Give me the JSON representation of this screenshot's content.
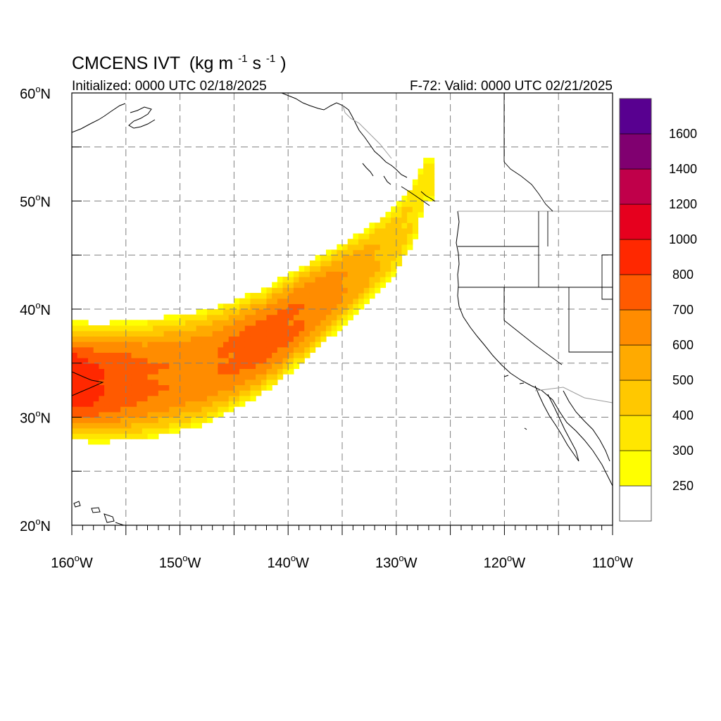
{
  "title": {
    "product": "CMCENS IVT",
    "units_prefix": "(kg m",
    "units_exp1": "-1",
    "units_mid": "s",
    "units_exp2": "-1",
    "units_suffix": ")",
    "initialized": "Initialized: 0000 UTC 02/18/2025",
    "valid": "F-72: Valid: 0000 UTC 02/21/2025"
  },
  "map": {
    "lon_range": [
      -160,
      -110
    ],
    "lat_range": [
      20,
      60
    ],
    "lon_ticks": [
      {
        "value": -160,
        "label": "160",
        "unit": "W"
      },
      {
        "value": -150,
        "label": "150",
        "unit": "W"
      },
      {
        "value": -140,
        "label": "140",
        "unit": "W"
      },
      {
        "value": -130,
        "label": "130",
        "unit": "W"
      },
      {
        "value": -120,
        "label": "120",
        "unit": "W"
      },
      {
        "value": -110,
        "label": "110",
        "unit": "W"
      }
    ],
    "lat_ticks": [
      {
        "value": 20,
        "label": "20",
        "unit": "N"
      },
      {
        "value": 30,
        "label": "30",
        "unit": "N"
      },
      {
        "value": 40,
        "label": "40",
        "unit": "N"
      },
      {
        "value": 50,
        "label": "50",
        "unit": "N"
      },
      {
        "value": 60,
        "label": "60",
        "unit": "N"
      }
    ],
    "degree_symbol": "o",
    "gridlines": "dashed every 5 degrees",
    "colors": {
      "grid": "#808080",
      "coast": "#000000",
      "border": "#9a9a9a"
    }
  },
  "colorbar": {
    "position": "right",
    "levels": [
      {
        "min": 0,
        "color": "#ffffff",
        "label": ""
      },
      {
        "min": 250,
        "color": "#ffff00",
        "label": "250"
      },
      {
        "min": 300,
        "color": "#ffe600",
        "label": "300"
      },
      {
        "min": 400,
        "color": "#ffc800",
        "label": "400"
      },
      {
        "min": 500,
        "color": "#ffaa00",
        "label": "500"
      },
      {
        "min": 600,
        "color": "#ff8c00",
        "label": "600"
      },
      {
        "min": 700,
        "color": "#ff5a00",
        "label": "700"
      },
      {
        "min": 800,
        "color": "#ff2800",
        "label": "800"
      },
      {
        "min": 1000,
        "color": "#e6001e",
        "label": "1000"
      },
      {
        "min": 1200,
        "color": "#c0004a",
        "label": "1200"
      },
      {
        "min": 1400,
        "color": "#800070",
        "label": "1400"
      },
      {
        "min": 1600,
        "color": "#580090",
        "label": "1600"
      }
    ]
  },
  "chart_data": {
    "type": "heatmap",
    "variable": "IVT",
    "units": "kg m-1 s-1",
    "grid_resolution_deg": 0.5,
    "plume": {
      "description_points": [
        {
          "lon": -160,
          "lat": 33.3,
          "center_ivt": 870,
          "half_width_deg": 5.5
        },
        {
          "lon": -157,
          "lat": 33.2,
          "center_ivt": 780,
          "half_width_deg": 5.5
        },
        {
          "lon": -153,
          "lat": 33.5,
          "center_ivt": 690,
          "half_width_deg": 5.5
        },
        {
          "lon": -148,
          "lat": 34.5,
          "center_ivt": 660,
          "half_width_deg": 5.3
        },
        {
          "lon": -145,
          "lat": 35.8,
          "center_ivt": 700,
          "half_width_deg": 5.0
        },
        {
          "lon": -142,
          "lat": 37.2,
          "center_ivt": 720,
          "half_width_deg": 4.8
        },
        {
          "lon": -139,
          "lat": 39.3,
          "center_ivt": 690,
          "half_width_deg": 4.5
        },
        {
          "lon": -136,
          "lat": 41.5,
          "center_ivt": 620,
          "half_width_deg": 4.0
        },
        {
          "lon": -133,
          "lat": 43.8,
          "center_ivt": 520,
          "half_width_deg": 3.5
        },
        {
          "lon": -130,
          "lat": 46.5,
          "center_ivt": 410,
          "half_width_deg": 3.0
        },
        {
          "lon": -128,
          "lat": 49.5,
          "center_ivt": 340,
          "half_width_deg": 2.6
        },
        {
          "lon": -127.5,
          "lat": 52.0,
          "center_ivt": 285,
          "half_width_deg": 1.8
        }
      ],
      "max_contour_level": 800
    }
  }
}
